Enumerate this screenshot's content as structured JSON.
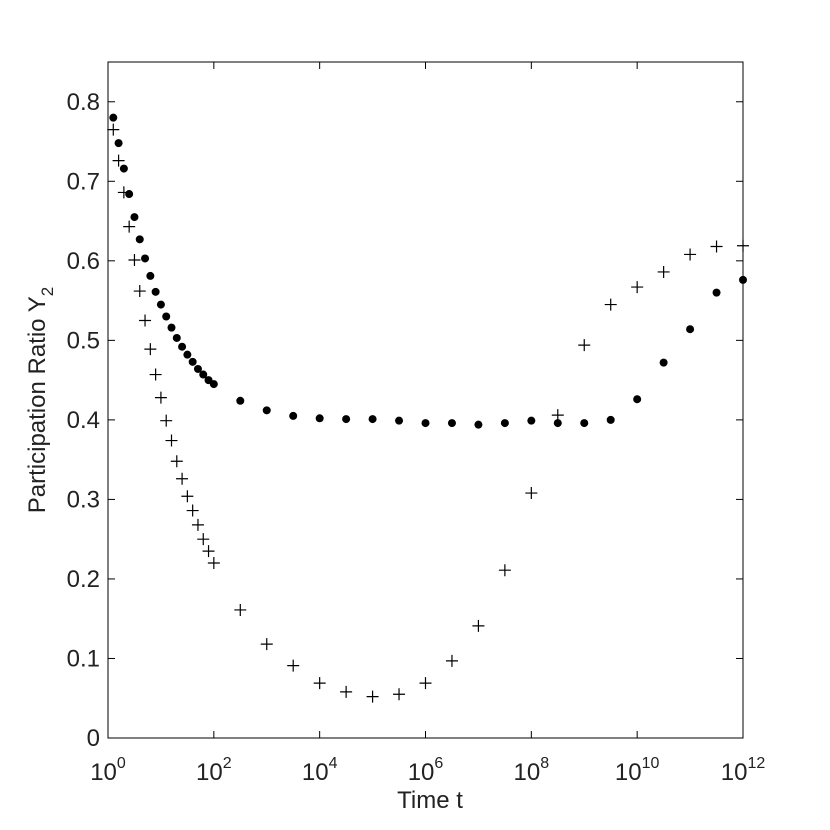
{
  "chart_data": {
    "type": "scatter",
    "xlabel": "Time t",
    "ylabel": {
      "text": "Participation Ratio Y",
      "subscript": "2"
    },
    "xscale": "log",
    "xlim": [
      1,
      1000000000000
    ],
    "ylim": [
      0,
      0.85
    ],
    "xticks": [
      {
        "value": 1,
        "label": "10",
        "exponent": "0"
      },
      {
        "value": 100,
        "label": "10",
        "exponent": "2"
      },
      {
        "value": 10000,
        "label": "10",
        "exponent": "4"
      },
      {
        "value": 1000000,
        "label": "10",
        "exponent": "6"
      },
      {
        "value": 100000000,
        "label": "10",
        "exponent": "8"
      },
      {
        "value": 10000000000,
        "label": "10",
        "exponent": "10"
      },
      {
        "value": 1000000000000,
        "label": "10",
        "exponent": "12"
      }
    ],
    "yticks": [
      0,
      0.1,
      0.2,
      0.3,
      0.4,
      0.5,
      0.6,
      0.7,
      0.8
    ],
    "grid": false,
    "x": [
      1.259,
      1.585,
      1.995,
      2.512,
      3.162,
      3.981,
      5.012,
      6.31,
      7.943,
      10,
      12.59,
      15.85,
      19.95,
      25.12,
      31.62,
      39.81,
      50.12,
      63.1,
      79.43,
      100,
      316.2,
      1000,
      3162,
      10000,
      31620,
      100000,
      316200,
      1000000,
      3162000,
      10000000,
      31620000,
      100000000,
      316200000,
      1000000000,
      3162000000,
      10000000000,
      31620000000,
      100000000000,
      316200000000,
      1000000000000
    ],
    "series": [
      {
        "marker": "dot",
        "color": "#000000",
        "values": [
          0.78,
          0.748,
          0.716,
          0.684,
          0.655,
          0.627,
          0.603,
          0.581,
          0.561,
          0.545,
          0.53,
          0.516,
          0.503,
          0.492,
          0.482,
          0.473,
          0.464,
          0.457,
          0.45,
          0.445,
          0.424,
          0.412,
          0.405,
          0.402,
          0.401,
          0.401,
          0.399,
          0.396,
          0.396,
          0.394,
          0.396,
          0.399,
          0.396,
          0.396,
          0.4,
          0.426,
          0.472,
          0.514,
          0.56,
          0.576
        ]
      },
      {
        "marker": "plus",
        "color": "#000000",
        "values": [
          0.765,
          0.726,
          0.686,
          0.643,
          0.601,
          0.562,
          0.525,
          0.489,
          0.457,
          0.428,
          0.399,
          0.374,
          0.348,
          0.326,
          0.304,
          0.286,
          0.268,
          0.25,
          0.235,
          0.22,
          0.161,
          0.118,
          0.091,
          0.069,
          0.058,
          0.052,
          0.055,
          0.069,
          0.097,
          0.141,
          0.211,
          0.308,
          0.406,
          0.494,
          0.545,
          0.567,
          0.586,
          0.608,
          0.618,
          0.619
        ]
      }
    ]
  }
}
